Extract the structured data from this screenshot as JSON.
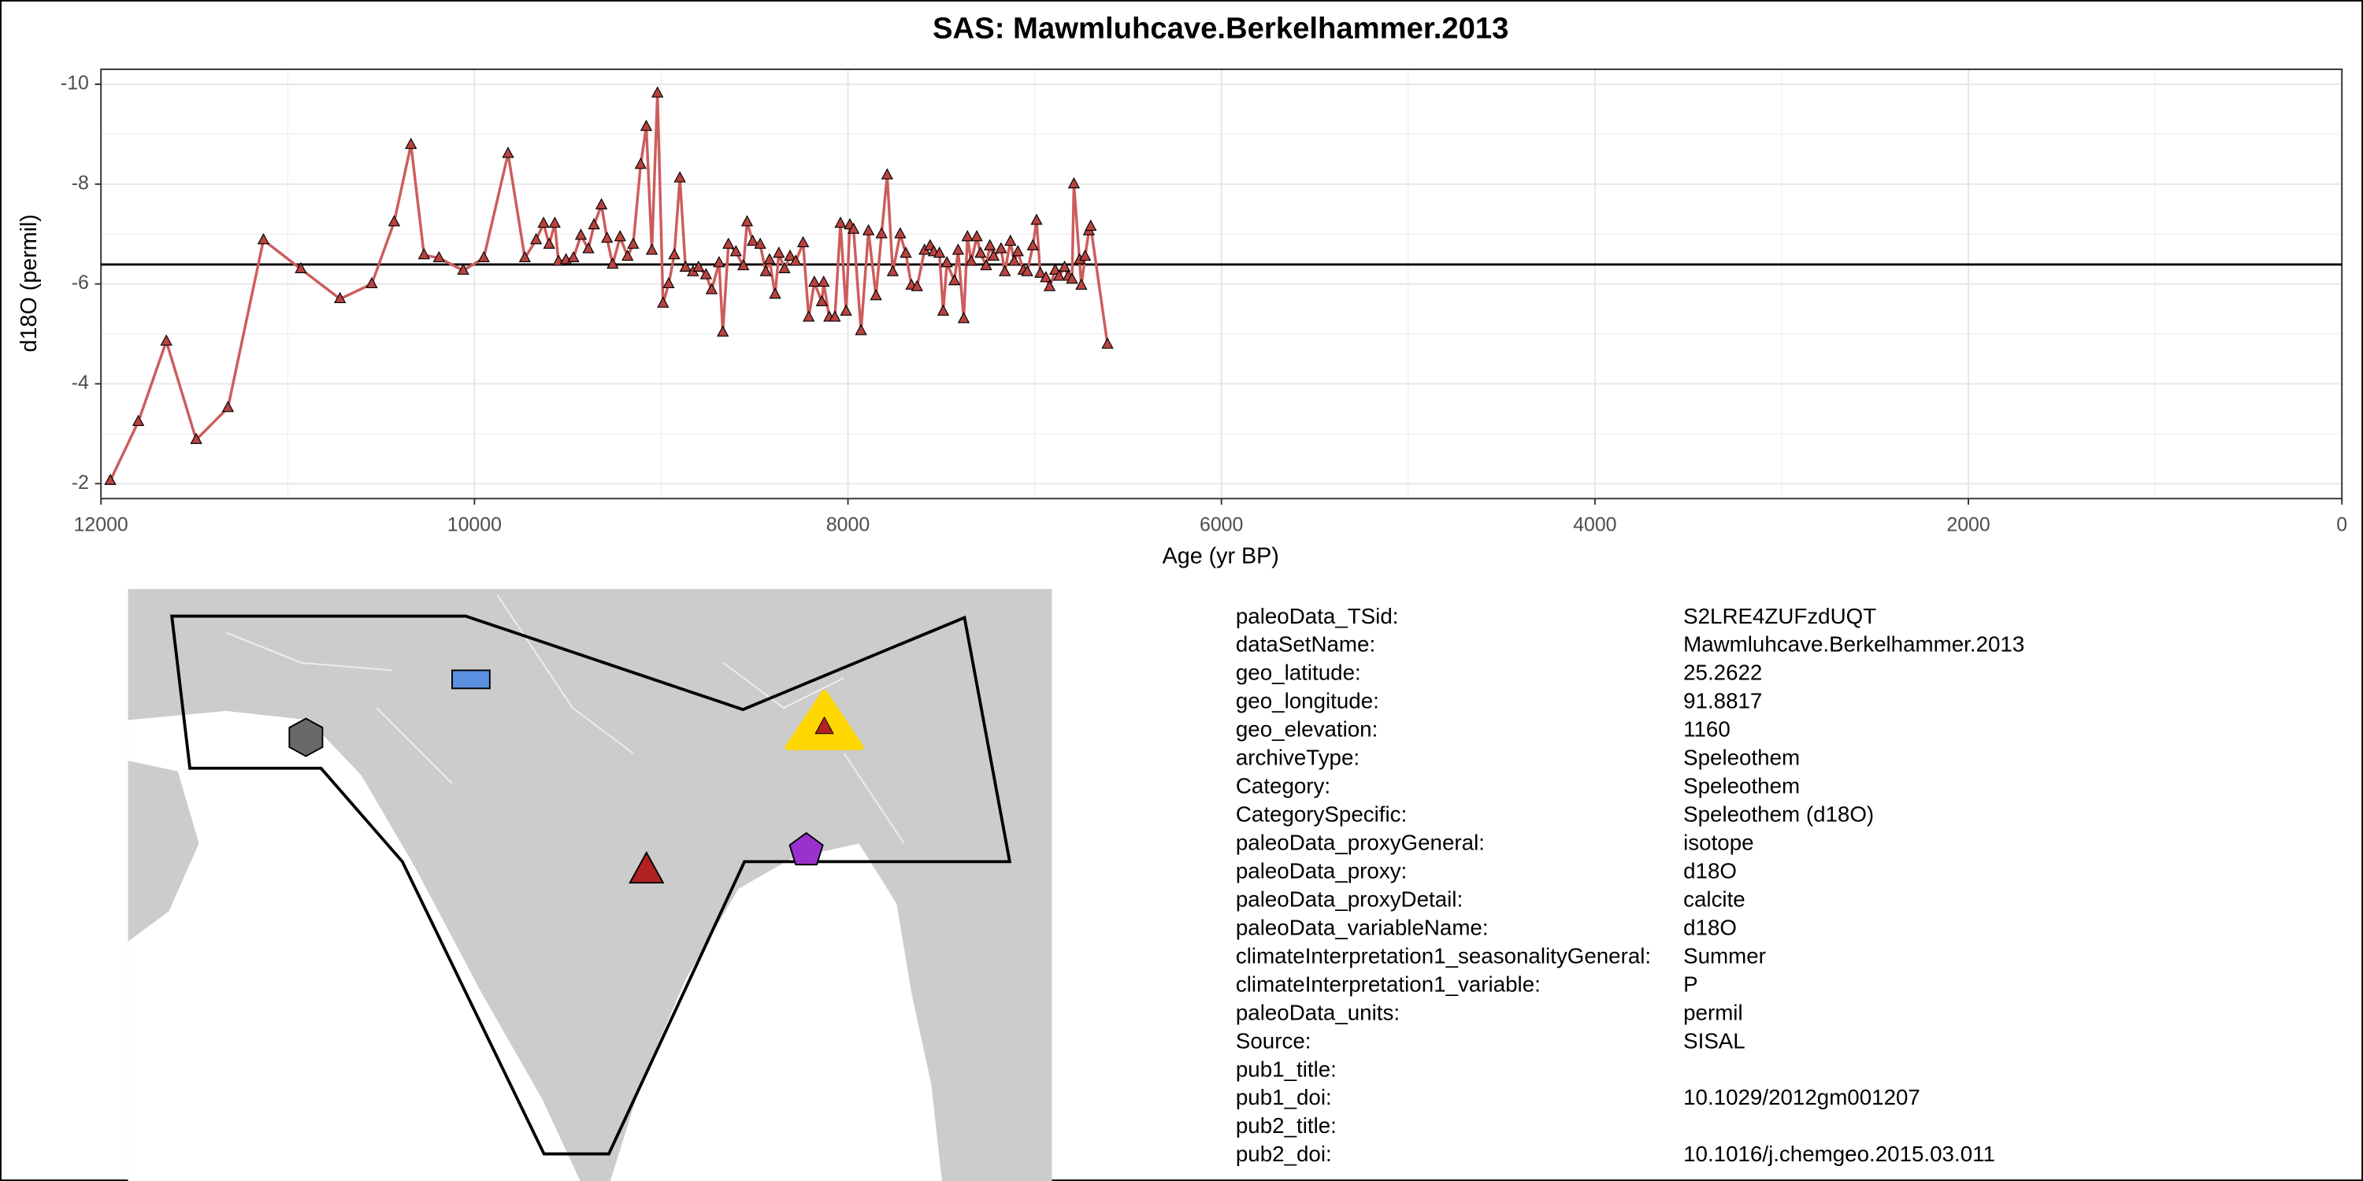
{
  "chart_data": {
    "type": "line",
    "title": "SAS: Mawmluhcave.Berkelhammer.2013",
    "x_label": "Age (yr BP)",
    "y_label": "d18O (permil)",
    "xlim": [
      12000,
      0
    ],
    "xticks": [
      12000,
      10000,
      8000,
      6000,
      4000,
      2000,
      0
    ],
    "xminor": [
      11000,
      9000,
      7000,
      5000,
      3000,
      1000
    ],
    "ylim": [
      -1.7,
      -10.3
    ],
    "yticks": [
      -10,
      -8,
      -6,
      -4,
      -2
    ],
    "yminor": [
      -9,
      -7,
      -5,
      -3
    ],
    "grid": true,
    "hline": -6.39,
    "color": "#cd5c5c",
    "marker_color": "#b8433f",
    "x": [
      11950,
      11800,
      11650,
      11490,
      11320,
      11130,
      10930,
      10720,
      10550,
      10430,
      10340,
      10270,
      10190,
      10060,
      9950,
      9820,
      9730,
      9670,
      9630,
      9600,
      9570,
      9550,
      9510,
      9470,
      9430,
      9390,
      9360,
      9320,
      9290,
      9260,
      9220,
      9180,
      9150,
      9110,
      9080,
      9050,
      9020,
      8990,
      8960,
      8930,
      8900,
      8870,
      8830,
      8800,
      8760,
      8730,
      8690,
      8670,
      8640,
      8600,
      8560,
      8540,
      8510,
      8470,
      8440,
      8420,
      8390,
      8370,
      8340,
      8310,
      8280,
      8240,
      8210,
      8180,
      8140,
      8130,
      8100,
      8070,
      8040,
      8010,
      7990,
      7970,
      7930,
      7890,
      7850,
      7820,
      7790,
      7760,
      7720,
      7690,
      7660,
      7630,
      7590,
      7560,
      7540,
      7510,
      7490,
      7470,
      7430,
      7410,
      7380,
      7360,
      7340,
      7310,
      7290,
      7260,
      7240,
      7220,
      7180,
      7160,
      7130,
      7110,
      7090,
      7060,
      7040,
      7010,
      6990,
      6970,
      6940,
      6920,
      6890,
      6870,
      6840,
      6820,
      6800,
      6790,
      6760,
      6750,
      6730,
      6710,
      6700,
      6610
    ],
    "values": [
      -2.06,
      -3.24,
      -4.85,
      -2.88,
      -3.52,
      -6.88,
      -6.3,
      -5.7,
      -6.0,
      -7.24,
      -8.79,
      -6.58,
      -6.52,
      -6.27,
      -6.52,
      -8.61,
      -6.52,
      -6.88,
      -7.21,
      -6.79,
      -7.21,
      -6.45,
      -6.48,
      -6.52,
      -6.97,
      -6.7,
      -7.18,
      -7.58,
      -6.91,
      -6.39,
      -6.94,
      -6.55,
      -6.79,
      -8.39,
      -9.15,
      -6.67,
      -9.82,
      -5.61,
      -6.0,
      -6.58,
      -8.12,
      -6.33,
      -6.24,
      -6.33,
      -6.18,
      -5.88,
      -6.42,
      -5.03,
      -6.79,
      -6.64,
      -6.36,
      -7.24,
      -6.85,
      -6.79,
      -6.24,
      -6.48,
      -5.79,
      -6.61,
      -6.3,
      -6.55,
      -6.45,
      -6.82,
      -5.33,
      -6.03,
      -5.64,
      -6.03,
      -5.33,
      -5.33,
      -7.21,
      -5.45,
      -7.18,
      -7.09,
      -5.06,
      -7.06,
      -5.76,
      -7.0,
      -8.18,
      -6.24,
      -7.0,
      -6.61,
      -5.97,
      -5.94,
      -6.67,
      -6.76,
      -6.64,
      -6.61,
      -5.45,
      -6.42,
      -6.06,
      -6.67,
      -5.3,
      -6.94,
      -6.45,
      -6.94,
      -6.61,
      -6.36,
      -6.76,
      -6.55,
      -6.7,
      -6.24,
      -6.85,
      -6.45,
      -6.64,
      -6.27,
      -6.24,
      -6.76,
      -7.27,
      -6.21,
      -6.12,
      -5.94,
      -6.27,
      -6.15,
      -6.33,
      -6.15,
      -6.09,
      -8.0,
      -6.48,
      -5.97,
      -6.55,
      -7.06,
      -7.15,
      -4.79
    ]
  },
  "metadata": [
    {
      "key": "paleoData_TSid:",
      "value": "S2LRE4ZUFzdUQT"
    },
    {
      "key": "dataSetName:",
      "value": "Mawmluhcave.Berkelhammer.2013"
    },
    {
      "key": "geo_latitude:",
      "value": "25.2622"
    },
    {
      "key": "geo_longitude:",
      "value": "91.8817"
    },
    {
      "key": "geo_elevation:",
      "value": "1160"
    },
    {
      "key": "archiveType:",
      "value": "Speleothem"
    },
    {
      "key": "Category:",
      "value": "Speleothem"
    },
    {
      "key": "CategorySpecific:",
      "value": "Speleothem (d18O)"
    },
    {
      "key": "paleoData_proxyGeneral:",
      "value": "isotope"
    },
    {
      "key": "paleoData_proxy:",
      "value": "d18O"
    },
    {
      "key": "paleoData_proxyDetail:",
      "value": "calcite"
    },
    {
      "key": "paleoData_variableName:",
      "value": "d18O"
    },
    {
      "key": "climateInterpretation1_seasonalityGeneral:",
      "value": "Summer"
    },
    {
      "key": "climateInterpretation1_variable:",
      "value": "P"
    },
    {
      "key": "paleoData_units:",
      "value": "permil"
    },
    {
      "key": "Source:",
      "value": "SISAL"
    },
    {
      "key": "pub1_title:"
    },
    {
      "key": "pub1_doi:",
      "value": "10.1029/2012gm001207"
    },
    {
      "key": "pub2_title:"
    },
    {
      "key": "pub2_doi:",
      "value": "10.1016/j.chemgeo.2015.03.011"
    }
  ]
}
